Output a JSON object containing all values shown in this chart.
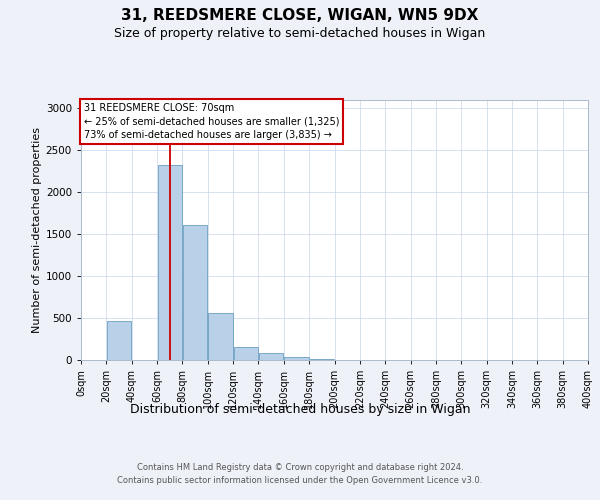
{
  "title": "31, REEDSMERE CLOSE, WIGAN, WN5 9DX",
  "subtitle": "Size of property relative to semi-detached houses in Wigan",
  "xlabel": "Distribution of semi-detached houses by size in Wigan",
  "ylabel": "Number of semi-detached properties",
  "footnote1": "Contains HM Land Registry data © Crown copyright and database right 2024.",
  "footnote2": "Contains public sector information licensed under the Open Government Licence v3.0.",
  "bin_edges": [
    0,
    20,
    40,
    60,
    80,
    100,
    120,
    140,
    160,
    180,
    200,
    220,
    240,
    260,
    280,
    300,
    320,
    340,
    360,
    380,
    400
  ],
  "bar_heights": [
    5,
    470,
    5,
    2330,
    1610,
    560,
    150,
    80,
    30,
    10,
    5,
    0,
    0,
    0,
    0,
    0,
    0,
    0,
    0,
    0
  ],
  "bar_color": "#b8d0e8",
  "bar_edge_color": "#6a9fc0",
  "property_size": 70,
  "property_label": "31 REEDSMERE CLOSE: 70sqm",
  "annotation_line1": "← 25% of semi-detached houses are smaller (1,325)",
  "annotation_line2": "73% of semi-detached houses are larger (3,835) →",
  "vline_color": "#cc0000",
  "annotation_box_color": "#cc0000",
  "ylim": [
    0,
    3100
  ],
  "xlim": [
    0,
    400
  ],
  "bg_color": "#eef2f8",
  "plot_bg_color": "#ffffff",
  "title_fontsize": 11,
  "subtitle_fontsize": 9,
  "ylabel_fontsize": 8,
  "tick_fontsize": 7,
  "xlabel_fontsize": 9,
  "footnote_fontsize": 6,
  "tick_labels": [
    "0sqm",
    "20sqm",
    "40sqm",
    "60sqm",
    "80sqm",
    "100sqm",
    "120sqm",
    "140sqm",
    "160sqm",
    "180sqm",
    "200sqm",
    "220sqm",
    "240sqm",
    "260sqm",
    "280sqm",
    "300sqm",
    "320sqm",
    "340sqm",
    "360sqm",
    "380sqm",
    "400sqm"
  ]
}
